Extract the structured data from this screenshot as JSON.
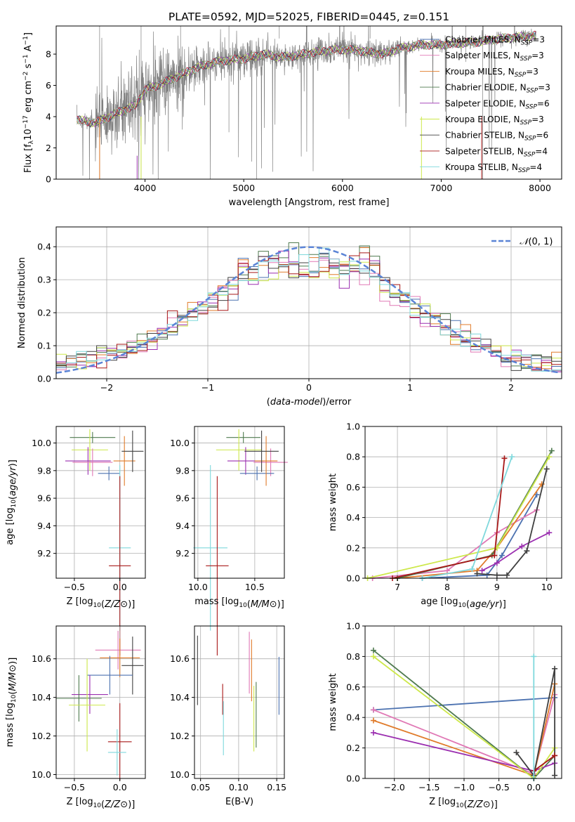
{
  "title": "PLATE=0592, MJD=52025, FIBERID=0445, z=0.151",
  "colors": {
    "chabrier_miles": "#4c72b0",
    "salpeter_miles": "#e078b5",
    "kroupa_miles": "#e07b2a",
    "chabrier_elodie": "#4f7a4f",
    "salpeter_elodie": "#9b2fb0",
    "kroupa_elodie": "#cde84a",
    "chabrier_stelib": "#404040",
    "salpeter_stelib": "#a81818",
    "kroupa_stelib": "#7fd8dc",
    "data": "#808080",
    "normal": "#5b84d6"
  },
  "chart_data": [
    {
      "id": "spectrum",
      "type": "line",
      "xlabel": "wavelength [Angstrom, rest frame]",
      "ylabel": "Flux [f",
      "xlim": [
        3100,
        8220
      ],
      "ylim": [
        0,
        9.8
      ],
      "xticks": [
        4000,
        5000,
        6000,
        7000,
        8000
      ],
      "yticks": [
        0,
        2,
        4,
        6,
        8
      ],
      "continuum": [
        [
          3310,
          3.8
        ],
        [
          3500,
          3.6
        ],
        [
          3700,
          4.2
        ],
        [
          3900,
          4.7
        ],
        [
          4000,
          5.7
        ],
        [
          4200,
          6.2
        ],
        [
          4400,
          6.8
        ],
        [
          4600,
          7.3
        ],
        [
          4800,
          7.6
        ],
        [
          5000,
          7.7
        ],
        [
          5200,
          8.0
        ],
        [
          5400,
          7.8
        ],
        [
          5600,
          8.0
        ],
        [
          5800,
          8.2
        ],
        [
          6000,
          8.3
        ],
        [
          6200,
          8.2
        ],
        [
          6400,
          8.0
        ],
        [
          6600,
          8.4
        ],
        [
          6800,
          8.6
        ],
        [
          7000,
          8.6
        ],
        [
          7200,
          8.7
        ],
        [
          7400,
          8.8
        ],
        [
          7600,
          9.0
        ],
        [
          7800,
          9.1
        ],
        [
          7960,
          9.2
        ]
      ],
      "legend": [
        {
          "label": "Chabrier MILES, N",
          "sub": "SSP",
          "suffix": "=3",
          "color": "chabrier_miles"
        },
        {
          "label": "Salpeter MILES, N",
          "sub": "SSP",
          "suffix": "=3",
          "color": "salpeter_miles"
        },
        {
          "label": "Kroupa MILES, N",
          "sub": "SSP",
          "suffix": "=3",
          "color": "kroupa_miles"
        },
        {
          "label": "Chabrier ELODIE, N",
          "sub": "SSP",
          "suffix": "=3",
          "color": "chabrier_elodie"
        },
        {
          "label": "Salpeter ELODIE, N",
          "sub": "SSP",
          "suffix": "=6",
          "color": "salpeter_elodie"
        },
        {
          "label": "Kroupa ELODIE, N",
          "sub": "SSP",
          "suffix": "=3",
          "color": "kroupa_elodie"
        },
        {
          "label": "Chabrier STELIB, N",
          "sub": "SSP",
          "suffix": "=6",
          "color": "chabrier_stelib"
        },
        {
          "label": "Salpeter STELIB, N",
          "sub": "SSP",
          "suffix": "=4",
          "color": "salpeter_stelib"
        },
        {
          "label": "Kroupa STELIB, N",
          "sub": "SSP",
          "suffix": "=4",
          "color": "kroupa_stelib"
        }
      ]
    },
    {
      "id": "residuals",
      "type": "histogram",
      "xlabel": "(data-model)/error",
      "ylabel": "Normed distribution",
      "xlim": [
        -2.5,
        2.5
      ],
      "ylim": [
        0,
        0.46
      ],
      "xticks": [
        -2,
        -1,
        0,
        1,
        2
      ],
      "yticks": [
        0.0,
        0.1,
        0.2,
        0.3,
        0.4
      ],
      "bin_width": 0.1,
      "legend_label": "N(0,1)",
      "grid": true
    },
    {
      "id": "age_vs_Z",
      "type": "errorbar",
      "xlabel": "Z [log10(Z/Z⊙)]",
      "ylabel": "age  [log10(age/yr)]",
      "xlim": [
        -0.7,
        0.28
      ],
      "ylim": [
        9.02,
        10.12
      ],
      "xticks": [
        -0.5,
        0.0
      ],
      "yticks": [
        9.2,
        9.4,
        9.6,
        9.8,
        10.0
      ],
      "grid": true,
      "points": [
        {
          "m": "chabrier_elodie",
          "x": -0.3,
          "xe": 0.25,
          "y": 10.04,
          "ye": 0.04
        },
        {
          "m": "kroupa_elodie",
          "x": -0.33,
          "xe": 0.2,
          "y": 9.95,
          "ye": 0.15
        },
        {
          "m": "salpeter_elodie",
          "x": -0.35,
          "xe": 0.25,
          "y": 9.87,
          "ye": 0.1
        },
        {
          "m": "salpeter_miles",
          "x": -0.3,
          "xe": 0.22,
          "y": 9.86,
          "ye": 0.1
        },
        {
          "m": "chabrier_miles",
          "x": -0.12,
          "xe": 0.12,
          "y": 9.78,
          "ye": 0.05
        },
        {
          "m": "kroupa_miles",
          "x": 0.05,
          "xe": 0.12,
          "y": 9.87,
          "ye": 0.18
        },
        {
          "m": "chabrier_stelib",
          "x": 0.14,
          "xe": 0.12,
          "y": 9.94,
          "ye": 0.15
        },
        {
          "m": "kroupa_stelib",
          "x": 0.0,
          "xe": 0.12,
          "y": 9.24,
          "ye": 0.6
        },
        {
          "m": "salpeter_stelib",
          "x": 0.0,
          "xe": 0.12,
          "y": 9.11,
          "ye": 0.65
        }
      ]
    },
    {
      "id": "age_vs_mass",
      "type": "errorbar",
      "xlabel": "mass [log10(M/M⊙)]",
      "ylabel": "",
      "xlim": [
        9.97,
        10.76
      ],
      "ylim": [
        9.02,
        10.12
      ],
      "xticks": [
        10.0,
        10.5
      ],
      "yticks": [
        9.2,
        9.4,
        9.6,
        9.8,
        10.0
      ],
      "grid": true,
      "points": [
        {
          "m": "chabrier_elodie",
          "x": 10.4,
          "xe": 0.15,
          "y": 10.04,
          "ye": 0.04
        },
        {
          "m": "kroupa_elodie",
          "x": 10.36,
          "xe": 0.2,
          "y": 9.95,
          "ye": 0.15
        },
        {
          "m": "salpeter_elodie",
          "x": 10.42,
          "xe": 0.16,
          "y": 9.87,
          "ye": 0.1
        },
        {
          "m": "salpeter_miles",
          "x": 10.64,
          "xe": 0.15,
          "y": 9.86,
          "ye": 0.1
        },
        {
          "m": "chabrier_miles",
          "x": 10.52,
          "xe": 0.15,
          "y": 9.78,
          "ye": 0.05
        },
        {
          "m": "kroupa_miles",
          "x": 10.6,
          "xe": 0.1,
          "y": 9.87,
          "ye": 0.18
        },
        {
          "m": "chabrier_stelib",
          "x": 10.56,
          "xe": 0.15,
          "y": 9.94,
          "ye": 0.15
        },
        {
          "m": "kroupa_stelib",
          "x": 10.11,
          "xe": 0.15,
          "y": 9.24,
          "ye": 0.6
        },
        {
          "m": "salpeter_stelib",
          "x": 10.17,
          "xe": 0.1,
          "y": 9.11,
          "ye": 0.65
        }
      ]
    },
    {
      "id": "weight_vs_age",
      "type": "line",
      "xlabel": "age  [log10(age/yr)]",
      "ylabel": "mass weight",
      "xlim": [
        6.35,
        10.3
      ],
      "ylim": [
        0,
        1.0
      ],
      "xticks": [
        7,
        8,
        9,
        10
      ],
      "yticks": [
        0.0,
        0.2,
        0.4,
        0.6,
        0.8,
        1.0
      ],
      "grid": true,
      "series": [
        {
          "m": "chabrier_miles",
          "x": [
            7.5,
            8.8,
            9.1,
            9.8
          ],
          "y": [
            0,
            0.02,
            0.15,
            0.55
          ]
        },
        {
          "m": "salpeter_miles",
          "x": [
            6.5,
            8.0,
            9.0,
            9.8
          ],
          "y": [
            0,
            0.05,
            0.3,
            0.45
          ]
        },
        {
          "m": "kroupa_miles",
          "x": [
            7.0,
            8.6,
            9.0,
            9.9
          ],
          "y": [
            0,
            0.05,
            0.2,
            0.62
          ]
        },
        {
          "m": "chabrier_elodie",
          "x": [
            7.0,
            8.9,
            10.1
          ],
          "y": [
            0,
            0.15,
            0.84
          ]
        },
        {
          "m": "salpeter_elodie",
          "x": [
            8.7,
            9.0,
            9.5,
            10.05
          ],
          "y": [
            0.05,
            0.1,
            0.21,
            0.3
          ]
        },
        {
          "m": "kroupa_elodie",
          "x": [
            6.4,
            9.0,
            10.05
          ],
          "y": [
            0,
            0.2,
            0.8
          ]
        },
        {
          "m": "chabrier_stelib",
          "x": [
            8.6,
            9.0,
            9.2,
            9.6,
            10.0
          ],
          "y": [
            0.03,
            0.02,
            0.02,
            0.18,
            0.72
          ]
        },
        {
          "m": "salpeter_stelib",
          "x": [
            6.9,
            8.95,
            9.15
          ],
          "y": [
            0,
            0.15,
            0.79
          ]
        },
        {
          "m": "kroupa_stelib",
          "x": [
            7.5,
            8.5,
            9.3
          ],
          "y": [
            0,
            0.06,
            0.8
          ]
        }
      ]
    },
    {
      "id": "mass_vs_Z",
      "type": "errorbar",
      "xlabel": "Z [log10(Z/Z⊙)]",
      "ylabel": "mass [log10(M/M⊙)]",
      "xlim": [
        -0.7,
        0.28
      ],
      "ylim": [
        9.98,
        10.77
      ],
      "xticks": [
        -0.5,
        0.0
      ],
      "yticks": [
        10.0,
        10.2,
        10.4,
        10.6
      ],
      "grid": true,
      "points": [
        {
          "m": "salpeter_miles",
          "x": -0.02,
          "xe": 0.25,
          "y": 10.645,
          "ye": 0.1
        },
        {
          "m": "kroupa_miles",
          "x": 0.0,
          "xe": 0.22,
          "y": 10.605,
          "ye": 0.1
        },
        {
          "m": "chabrier_stelib",
          "x": 0.14,
          "xe": 0.12,
          "y": 10.565,
          "ye": 0.15
        },
        {
          "m": "chabrier_miles",
          "x": -0.11,
          "xe": 0.25,
          "y": 10.515,
          "ye": 0.1
        },
        {
          "m": "salpeter_elodie",
          "x": -0.33,
          "xe": 0.2,
          "y": 10.415,
          "ye": 0.1
        },
        {
          "m": "chabrier_elodie",
          "x": -0.45,
          "xe": 0.25,
          "y": 10.395,
          "ye": 0.12
        },
        {
          "m": "kroupa_elodie",
          "x": -0.36,
          "xe": 0.2,
          "y": 10.36,
          "ye": 0.24
        },
        {
          "m": "salpeter_stelib",
          "x": 0.0,
          "xe": 0.13,
          "y": 10.17,
          "ye": 0.2
        },
        {
          "m": "kroupa_stelib",
          "x": -0.03,
          "xe": 0.1,
          "y": 10.115,
          "ye": 0.12
        }
      ]
    },
    {
      "id": "mass_vs_ebv",
      "type": "errorbar",
      "xlabel": "E(B-V)",
      "ylabel": "",
      "xlim": [
        0.042,
        0.16
      ],
      "ylim": [
        9.98,
        10.77
      ],
      "xticks": [
        0.05,
        0.1,
        0.15
      ],
      "yticks": [
        10.0,
        10.2,
        10.4,
        10.6
      ],
      "grid": true,
      "points": [
        {
          "m": "chabrier_stelib",
          "x": 0.046,
          "y": 10.54,
          "ye": 0.18
        },
        {
          "m": "salpeter_stelib",
          "x": 0.079,
          "y": 10.39,
          "ye": 0.08
        },
        {
          "m": "kroupa_stelib",
          "x": 0.08,
          "y": 10.24,
          "ye": 0.14
        },
        {
          "m": "salpeter_miles",
          "x": 0.114,
          "y": 10.58,
          "ye": 0.16
        },
        {
          "m": "kroupa_miles",
          "x": 0.117,
          "y": 10.54,
          "ye": 0.16
        },
        {
          "m": "kroupa_elodie",
          "x": 0.12,
          "y": 10.29,
          "ye": 0.17
        },
        {
          "m": "chabrier_elodie",
          "x": 0.123,
          "y": 10.31,
          "ye": 0.17
        },
        {
          "m": "chabrier_miles",
          "x": 0.153,
          "y": 10.46,
          "ye": 0.15
        }
      ]
    },
    {
      "id": "weight_vs_Z",
      "type": "line",
      "xlabel": "Z [log10(Z/Z⊙)]",
      "ylabel": "mass weight",
      "xlim": [
        -2.42,
        0.4
      ],
      "ylim": [
        0,
        1.0
      ],
      "xticks": [
        -2.0,
        -1.5,
        -1.0,
        -0.5,
        0.0
      ],
      "yticks": [
        0.0,
        0.2,
        0.4,
        0.6,
        0.8,
        1.0
      ],
      "grid": true,
      "series": [
        {
          "m": "chabrier_miles",
          "x": [
            -2.3,
            0.3
          ],
          "y": [
            0.45,
            0.53
          ]
        },
        {
          "m": "salpeter_miles",
          "x": [
            -2.3,
            0.0,
            0.3
          ],
          "y": [
            0.45,
            0.03,
            0.55
          ]
        },
        {
          "m": "kroupa_miles",
          "x": [
            -2.3,
            0.0,
            0.3
          ],
          "y": [
            0.38,
            0.02,
            0.62
          ]
        },
        {
          "m": "chabrier_elodie",
          "x": [
            -2.3,
            0.0,
            0.3
          ],
          "y": [
            0.84,
            0.0,
            0.15
          ]
        },
        {
          "m": "salpeter_elodie",
          "x": [
            -2.3,
            0.0,
            0.3
          ],
          "y": [
            0.3,
            0.05,
            0.1
          ]
        },
        {
          "m": "kroupa_elodie",
          "x": [
            -2.3,
            0.0,
            0.3
          ],
          "y": [
            0.8,
            0.0,
            0.2
          ]
        },
        {
          "m": "chabrier_stelib",
          "x": [
            -0.25,
            0.0,
            0.3,
            0.3
          ],
          "y": [
            0.17,
            0.02,
            0.72,
            0.02
          ]
        },
        {
          "m": "salpeter_stelib",
          "x": [
            0.0,
            0.3
          ],
          "y": [
            0.05,
            0.15
          ]
        },
        {
          "m": "kroupa_stelib",
          "x": [
            0.0,
            0.0
          ],
          "y": [
            0.8,
            0.0
          ]
        }
      ]
    }
  ]
}
